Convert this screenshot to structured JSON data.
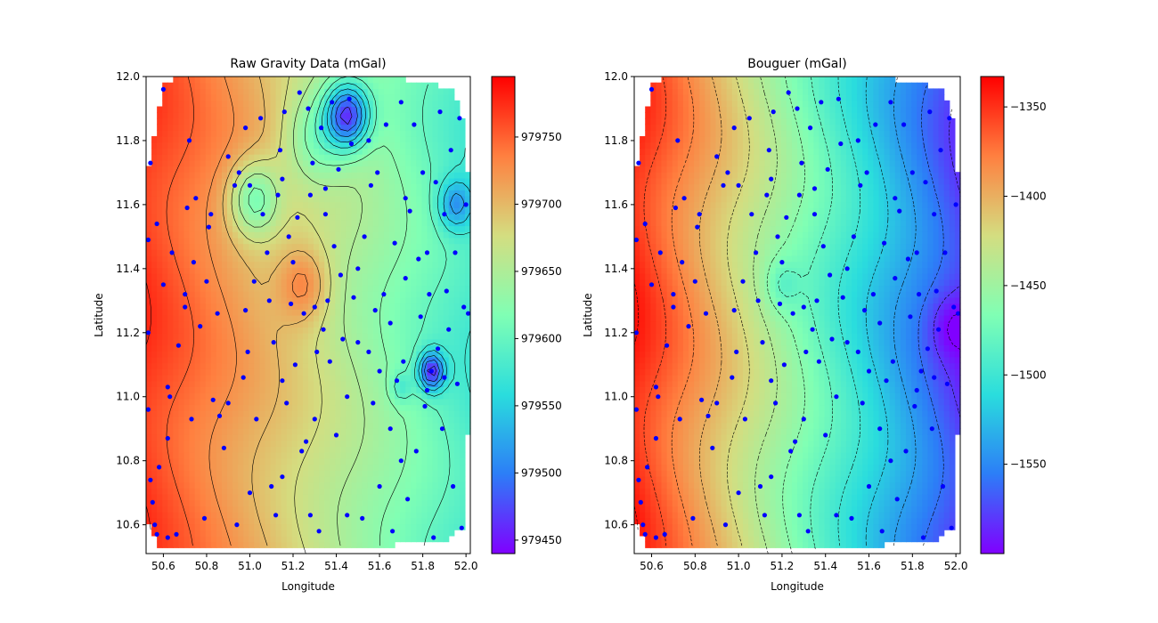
{
  "chart_data": [
    {
      "type": "heatmap",
      "title": "Raw Gravity Data (mGal)",
      "xlabel": "Longitude",
      "ylabel": "Latitude",
      "xlim": [
        50.52,
        52.02
      ],
      "ylim": [
        10.51,
        12.0
      ],
      "xticks": [
        "50.6",
        "50.8",
        "51.0",
        "51.2",
        "51.4",
        "51.6",
        "51.8",
        "52.0"
      ],
      "yticks": [
        "10.6",
        "10.8",
        "11.0",
        "11.2",
        "11.4",
        "11.6",
        "11.8",
        "12.0"
      ],
      "colorbar": {
        "colormap": "rainbow",
        "range": [
          979440,
          979795
        ],
        "ticks": [
          "979450",
          "979500",
          "979550",
          "979600",
          "979650",
          "979700",
          "979750"
        ]
      },
      "contours": "solid",
      "trend": {
        "west": 979770,
        "east": 979580
      },
      "anomalies": [
        {
          "lon": 51.45,
          "lat": 11.88,
          "delta": -170,
          "radius": 0.1
        },
        {
          "lon": 51.02,
          "lat": 11.62,
          "delta": -90,
          "radius": 0.12
        },
        {
          "lon": 51.84,
          "lat": 11.08,
          "delta": -140,
          "radius": 0.06
        },
        {
          "lon": 51.95,
          "lat": 11.6,
          "delta": -80,
          "radius": 0.08
        },
        {
          "lon": 51.7,
          "lat": 11.03,
          "delta": -40,
          "radius": 0.05
        },
        {
          "lon": 51.25,
          "lat": 11.35,
          "delta": 60,
          "radius": 0.12
        },
        {
          "lon": 51.3,
          "lat": 11.8,
          "delta": -60,
          "radius": 0.15
        }
      ]
    },
    {
      "type": "heatmap",
      "title": "Bouguer (mGal)",
      "xlabel": "Longitude",
      "ylabel": "Latitude",
      "xlim": [
        50.52,
        52.02
      ],
      "ylim": [
        10.51,
        12.0
      ],
      "xticks": [
        "50.6",
        "50.8",
        "51.0",
        "51.2",
        "51.4",
        "51.6",
        "51.8",
        "52.0"
      ],
      "yticks": [
        "10.6",
        "10.8",
        "11.0",
        "11.2",
        "11.4",
        "11.6",
        "11.8",
        "12.0"
      ],
      "colorbar": {
        "colormap": "rainbow",
        "range": [
          -1600,
          -1333
        ],
        "ticks": [
          "−1350",
          "−1400",
          "−1450",
          "−1500",
          "−1550"
        ]
      },
      "contours": "dashed",
      "trend": {
        "west": -1345,
        "east": -1580
      },
      "anomalies": [
        {
          "lon": 51.2,
          "lat": 11.35,
          "delta": -25,
          "radius": 0.08
        },
        {
          "lon": 51.98,
          "lat": 11.22,
          "delta": -25,
          "radius": 0.1
        }
      ]
    }
  ],
  "stations": [
    [
      50.54,
      11.73
    ],
    [
      50.53,
      11.49
    ],
    [
      50.57,
      11.54
    ],
    [
      50.53,
      11.2
    ],
    [
      50.53,
      10.96
    ],
    [
      50.54,
      10.74
    ],
    [
      50.55,
      10.67
    ],
    [
      50.56,
      10.6
    ],
    [
      50.57,
      10.57
    ],
    [
      50.58,
      10.78
    ],
    [
      50.6,
      11.96
    ],
    [
      50.6,
      11.35
    ],
    [
      50.62,
      11.03
    ],
    [
      50.62,
      10.87
    ],
    [
      50.62,
      10.56
    ],
    [
      50.63,
      11.0
    ],
    [
      50.64,
      11.45
    ],
    [
      50.66,
      10.57
    ],
    [
      50.67,
      11.16
    ],
    [
      50.7,
      11.28
    ],
    [
      50.7,
      11.32
    ],
    [
      50.71,
      11.59
    ],
    [
      50.72,
      11.8
    ],
    [
      50.73,
      10.93
    ],
    [
      50.74,
      11.42
    ],
    [
      50.75,
      11.62
    ],
    [
      50.77,
      11.22
    ],
    [
      50.79,
      10.62
    ],
    [
      50.8,
      11.36
    ],
    [
      50.81,
      11.53
    ],
    [
      50.82,
      11.57
    ],
    [
      50.83,
      10.99
    ],
    [
      50.85,
      11.26
    ],
    [
      50.86,
      10.94
    ],
    [
      50.88,
      10.84
    ],
    [
      50.9,
      11.75
    ],
    [
      50.93,
      11.66
    ],
    [
      50.94,
      10.6
    ],
    [
      50.95,
      11.7
    ],
    [
      50.97,
      11.06
    ],
    [
      50.98,
      11.27
    ],
    [
      50.99,
      11.14
    ],
    [
      51.0,
      11.66
    ],
    [
      51.02,
      11.36
    ],
    [
      51.03,
      10.93
    ],
    [
      51.05,
      11.87
    ],
    [
      51.06,
      11.57
    ],
    [
      51.08,
      11.45
    ],
    [
      51.09,
      11.3
    ],
    [
      51.1,
      10.72
    ],
    [
      51.11,
      11.17
    ],
    [
      51.13,
      11.63
    ],
    [
      51.14,
      11.77
    ],
    [
      51.15,
      10.75
    ],
    [
      51.16,
      11.89
    ],
    [
      51.17,
      10.98
    ],
    [
      51.18,
      11.5
    ],
    [
      51.19,
      11.29
    ],
    [
      51.2,
      11.42
    ],
    [
      51.21,
      11.1
    ],
    [
      51.22,
      11.56
    ],
    [
      51.23,
      11.95
    ],
    [
      51.24,
      10.83
    ],
    [
      51.25,
      11.26
    ],
    [
      51.26,
      10.86
    ],
    [
      51.27,
      11.9
    ],
    [
      51.28,
      11.63
    ],
    [
      51.29,
      11.73
    ],
    [
      51.3,
      11.28
    ],
    [
      51.31,
      11.14
    ],
    [
      51.32,
      10.58
    ],
    [
      51.33,
      11.84
    ],
    [
      51.34,
      11.21
    ],
    [
      51.35,
      11.57
    ],
    [
      51.36,
      11.3
    ],
    [
      51.37,
      11.11
    ],
    [
      51.38,
      11.92
    ],
    [
      51.39,
      11.47
    ],
    [
      51.4,
      10.88
    ],
    [
      51.41,
      11.71
    ],
    [
      51.42,
      11.38
    ],
    [
      51.43,
      11.18
    ],
    [
      51.45,
      10.63
    ],
    [
      51.46,
      11.93
    ],
    [
      51.47,
      11.79
    ],
    [
      51.48,
      11.31
    ],
    [
      51.5,
      11.17
    ],
    [
      51.52,
      10.62
    ],
    [
      51.53,
      11.5
    ],
    [
      51.55,
      11.14
    ],
    [
      51.56,
      11.66
    ],
    [
      51.57,
      10.98
    ],
    [
      51.58,
      11.27
    ],
    [
      51.59,
      11.7
    ],
    [
      51.6,
      10.72
    ],
    [
      51.62,
      11.32
    ],
    [
      51.63,
      11.85
    ],
    [
      51.65,
      11.23
    ],
    [
      51.66,
      10.58
    ],
    [
      51.67,
      11.48
    ],
    [
      51.68,
      11.05
    ],
    [
      51.7,
      11.92
    ],
    [
      51.71,
      11.11
    ],
    [
      51.72,
      11.37
    ],
    [
      51.73,
      10.68
    ],
    [
      51.74,
      11.58
    ],
    [
      51.76,
      11.85
    ],
    [
      51.77,
      10.83
    ],
    [
      51.78,
      11.43
    ],
    [
      51.79,
      11.25
    ],
    [
      51.8,
      11.7
    ],
    [
      51.81,
      10.97
    ],
    [
      51.82,
      11.02
    ],
    [
      51.83,
      11.32
    ],
    [
      51.84,
      11.08
    ],
    [
      51.85,
      10.56
    ],
    [
      51.86,
      11.67
    ],
    [
      51.87,
      11.15
    ],
    [
      51.88,
      11.89
    ],
    [
      51.89,
      10.9
    ],
    [
      51.9,
      11.57
    ],
    [
      51.91,
      11.33
    ],
    [
      51.92,
      11.21
    ],
    [
      51.93,
      11.77
    ],
    [
      51.94,
      10.72
    ],
    [
      51.95,
      11.45
    ],
    [
      51.96,
      11.04
    ],
    [
      51.97,
      11.87
    ],
    [
      51.98,
      10.59
    ],
    [
      51.99,
      11.28
    ],
    [
      52.0,
      11.6
    ],
    [
      52.01,
      11.26
    ],
    [
      51.5,
      11.4
    ],
    [
      51.0,
      10.7
    ],
    [
      50.9,
      10.98
    ],
    [
      51.3,
      10.93
    ],
    [
      51.15,
      11.05
    ],
    [
      51.45,
      11.0
    ],
    [
      51.7,
      10.8
    ],
    [
      51.28,
      10.63
    ],
    [
      51.12,
      10.63
    ],
    [
      51.6,
      11.08
    ],
    [
      51.82,
      11.45
    ],
    [
      51.55,
      11.8
    ],
    [
      51.35,
      11.65
    ],
    [
      51.15,
      11.68
    ],
    [
      50.98,
      11.84
    ],
    [
      51.72,
      11.62
    ],
    [
      51.9,
      11.06
    ],
    [
      51.65,
      10.9
    ]
  ]
}
